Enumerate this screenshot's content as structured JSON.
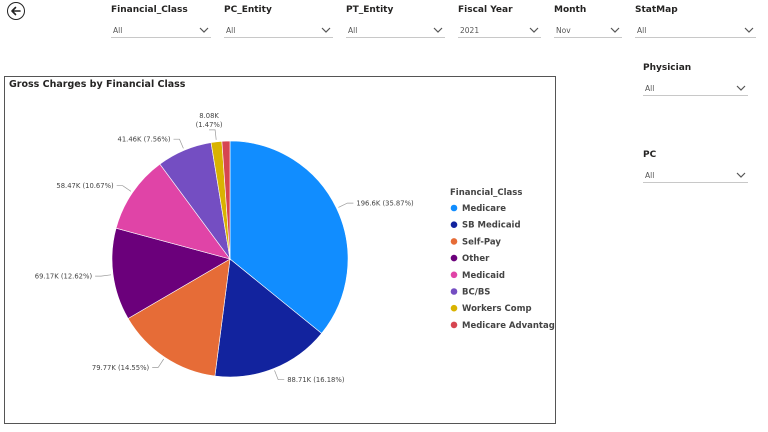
{
  "filters": [
    {
      "key": "financial_class",
      "label": "Financial_Class",
      "value": "All"
    },
    {
      "key": "pc_entity",
      "label": "PC_Entity",
      "value": "All"
    },
    {
      "key": "pt_entity",
      "label": "PT_Entity",
      "value": "All"
    },
    {
      "key": "fiscal_year",
      "label": "Fiscal Year",
      "value": "2021"
    },
    {
      "key": "month",
      "label": "Month",
      "value": "Nov"
    },
    {
      "key": "statmap",
      "label": "StatMap",
      "value": "All"
    },
    {
      "key": "physician",
      "label": "Physician",
      "value": "All"
    },
    {
      "key": "pc",
      "label": "PC",
      "value": "All"
    }
  ],
  "icons": {
    "back": "back-arrow-icon",
    "dropdown": "chevron-down-icon"
  },
  "chart_data": {
    "type": "pie",
    "title": "Gross Charges by Financial Class",
    "legend_title": "Financial_Class",
    "legend_position": "right",
    "categories": [
      "Medicare",
      "SB Medicaid",
      "Self-Pay",
      "Other",
      "Medicaid",
      "BC/BS",
      "Workers Comp",
      "Medicare Advantage"
    ],
    "values": [
      196.6,
      88.71,
      79.77,
      69.17,
      58.47,
      41.46,
      8.08,
      6.0
    ],
    "percents": [
      35.87,
      16.18,
      14.55,
      12.62,
      10.67,
      7.56,
      1.47,
      1.09
    ],
    "data_labels": [
      "196.6K (35.87%)",
      "88.71K (16.18%)",
      "79.77K (14.55%)",
      "69.17K (12.62%)",
      "58.47K (10.67%)",
      "41.46K (7.56%)",
      "8.08K (1.47%)",
      ""
    ],
    "colors": [
      "#118DFF",
      "#12239E",
      "#E66C37",
      "#6B007B",
      "#E044A7",
      "#744EC2",
      "#D9B300",
      "#D64550"
    ],
    "unit": "K"
  }
}
